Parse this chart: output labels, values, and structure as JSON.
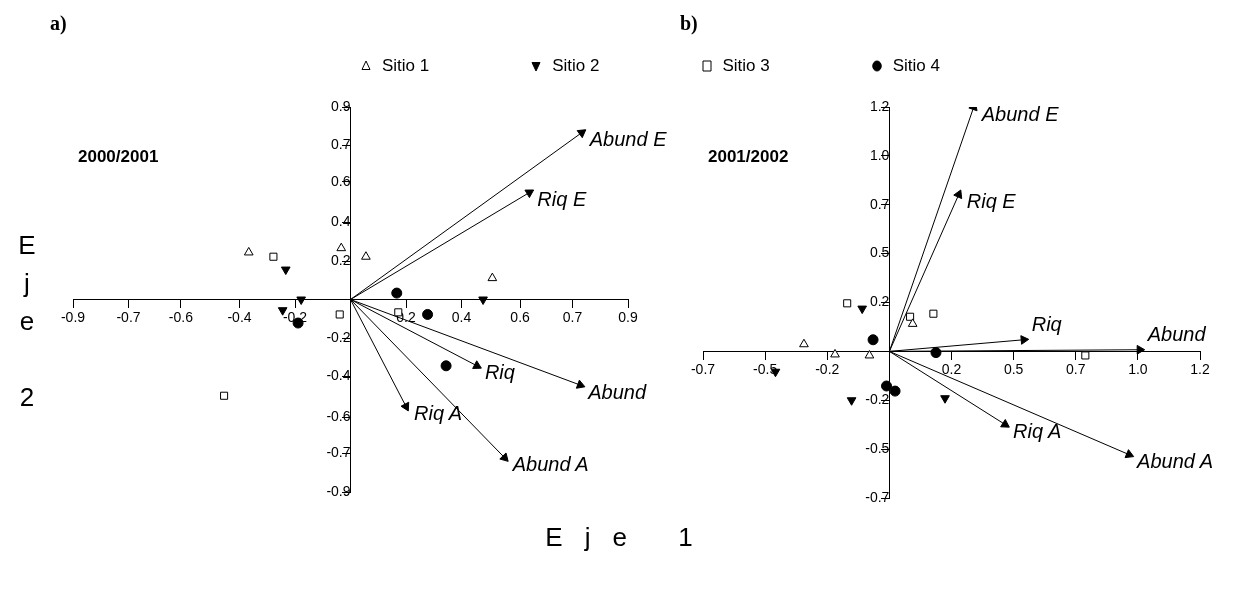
{
  "chart_data": [
    {
      "type": "scatter",
      "title": "a)",
      "xlabel": "Eje 1",
      "ylabel": "Eje 2",
      "legend": "top",
      "grid": false,
      "annotations": [
        "2000/2001"
      ],
      "xlim": [
        -0.9,
        0.9
      ],
      "ylim": [
        -0.9,
        0.9
      ],
      "xticks": [
        -0.9,
        {
          "value": -0.72,
          "label": "-0.7"
        },
        {
          "value": -0.55,
          "label": "-0.6"
        },
        {
          "value": -0.36,
          "label": "-0.4"
        },
        {
          "value": -0.18,
          "label": "-0.2"
        },
        {
          "value": 0.18,
          "label": "0.2"
        },
        {
          "value": 0.36,
          "label": "0.4"
        },
        {
          "value": 0.55,
          "label": "0.6"
        },
        {
          "value": 0.72,
          "label": "0.7"
        },
        0.9
      ],
      "yticks": [
        -0.9,
        {
          "value": -0.72,
          "label": "-0.7"
        },
        {
          "value": -0.55,
          "label": "-0.6"
        },
        {
          "value": -0.36,
          "label": "-0.4"
        },
        {
          "value": -0.18,
          "label": "-0.2"
        },
        {
          "value": 0.18,
          "label": "0.2"
        },
        {
          "value": 0.36,
          "label": "0.4"
        },
        {
          "value": 0.55,
          "label": "0.6"
        },
        {
          "value": 0.72,
          "label": "0.7"
        },
        0.9
      ],
      "series": [
        {
          "name": "Sitio 1",
          "marker": "triangle",
          "color": "#000000",
          "x": [
            -0.33,
            -0.03,
            0.05,
            0.46
          ],
          "values": [
            0.22,
            0.24,
            0.2,
            0.1
          ]
        },
        {
          "name": "Sitio 2",
          "marker": "triangle_down",
          "color": "#000000",
          "x": [
            -0.21,
            -0.16,
            -0.22,
            0.43
          ],
          "values": [
            0.14,
            0.0,
            -0.05,
            0.0
          ]
        },
        {
          "name": "Sitio 3",
          "marker": "square",
          "color": "#000000",
          "x": [
            -0.25,
            -0.035,
            0.155,
            -0.41
          ],
          "values": [
            0.2,
            -0.07,
            -0.06,
            -0.45
          ]
        },
        {
          "name": "Sitio 4",
          "marker": "circle",
          "color": "#000000",
          "x": [
            -0.17,
            0.15,
            0.25,
            0.31
          ],
          "values": [
            -0.11,
            0.03,
            -0.07,
            -0.31
          ]
        },
        {
          "name": "Abund E",
          "type": "line",
          "marker": "triangle",
          "color": "#000000",
          "x": [
            0,
            0.75
          ],
          "values": [
            0,
            0.78
          ]
        },
        {
          "name": "Riq E",
          "type": "line",
          "marker": "triangle",
          "color": "#000000",
          "x": [
            0,
            0.58
          ],
          "values": [
            0,
            0.5
          ]
        },
        {
          "name": "Riq",
          "type": "line",
          "marker": "triangle",
          "color": "#000000",
          "x": [
            0,
            0.41
          ],
          "values": [
            0,
            -0.31
          ]
        },
        {
          "name": "Abund",
          "type": "line",
          "marker": "triangle",
          "color": "#000000",
          "x": [
            0,
            0.745
          ],
          "values": [
            0,
            -0.4
          ]
        },
        {
          "name": "Riq A",
          "type": "line",
          "marker": "triangle",
          "color": "#000000",
          "x": [
            0,
            0.18
          ],
          "values": [
            0,
            -0.5
          ]
        },
        {
          "name": "Abund A",
          "type": "line",
          "marker": "triangle",
          "color": "#000000",
          "x": [
            0,
            0.5
          ],
          "values": [
            0,
            -0.74
          ]
        }
      ]
    },
    {
      "type": "scatter",
      "title": "b)",
      "grid": false,
      "annotations": [
        "2001/2002"
      ],
      "xlim": [
        -0.72,
        1.2
      ],
      "ylim": [
        -0.72,
        1.2
      ],
      "xticks": [
        {
          "value": -0.72,
          "label": "-0.7"
        },
        {
          "value": -0.48,
          "label": "-0.5"
        },
        {
          "value": -0.24,
          "label": "-0.2"
        },
        {
          "value": 0.24,
          "label": "0.2"
        },
        {
          "value": 0.48,
          "label": "0.5"
        },
        {
          "value": 0.72,
          "label": "0.7"
        },
        {
          "value": 0.96,
          "label": "1.0"
        },
        1.2
      ],
      "yticks": [
        {
          "value": -0.72,
          "label": "-0.7"
        },
        {
          "value": -0.48,
          "label": "-0.5"
        },
        {
          "value": -0.24,
          "label": "-0.2"
        },
        {
          "value": 0.24,
          "label": "0.2"
        },
        {
          "value": 0.48,
          "label": "0.5"
        },
        {
          "value": 0.72,
          "label": "0.7"
        },
        {
          "value": 0.96,
          "label": "1.0"
        },
        1.2
      ],
      "series": [
        {
          "marker": "triangle",
          "color": "#000000",
          "x": [
            -0.33,
            -0.21,
            -0.077,
            0.09
          ],
          "values": [
            0.035,
            -0.015,
            -0.02,
            0.135
          ]
        },
        {
          "marker": "triangle_down",
          "color": "#000000",
          "x": [
            -0.44,
            -0.105,
            -0.146,
            0.215
          ],
          "values": [
            -0.1,
            0.21,
            -0.24,
            -0.23
          ]
        },
        {
          "marker": "square",
          "color": "#000000",
          "x": [
            -0.163,
            0.08,
            0.17,
            0.757
          ],
          "values": [
            0.236,
            0.17,
            0.185,
            -0.02
          ]
        },
        {
          "marker": "circle",
          "color": "#000000",
          "x": [
            -0.063,
            0.18,
            -0.011,
            0.022
          ],
          "values": [
            0.057,
            -0.006,
            -0.17,
            -0.195
          ]
        },
        {
          "name": "Abund E",
          "type": "line",
          "marker": "triangle",
          "color": "#000000",
          "x": [
            0,
            0.326
          ],
          "values": [
            0,
            1.2
          ]
        },
        {
          "name": "Riq E",
          "type": "line",
          "marker": "triangle",
          "color": "#000000",
          "x": [
            0,
            0.268
          ],
          "values": [
            0,
            0.77
          ]
        },
        {
          "name": "Riq",
          "type": "line",
          "marker": "triangle",
          "color": "#000000",
          "x": [
            0,
            0.519
          ],
          "values": [
            0,
            0.057
          ]
        },
        {
          "name": "Abund",
          "type": "line",
          "marker": "triangle",
          "color": "#000000",
          "x": [
            0,
            0.967
          ],
          "values": [
            0,
            0.008
          ]
        },
        {
          "name": "Riq A",
          "type": "line",
          "marker": "triangle",
          "color": "#000000",
          "x": [
            0,
            0.447
          ],
          "values": [
            0,
            -0.359
          ]
        },
        {
          "name": "Abund A",
          "type": "line",
          "marker": "triangle",
          "color": "#000000",
          "x": [
            0,
            0.926
          ],
          "values": [
            0,
            -0.507
          ]
        }
      ]
    }
  ]
}
